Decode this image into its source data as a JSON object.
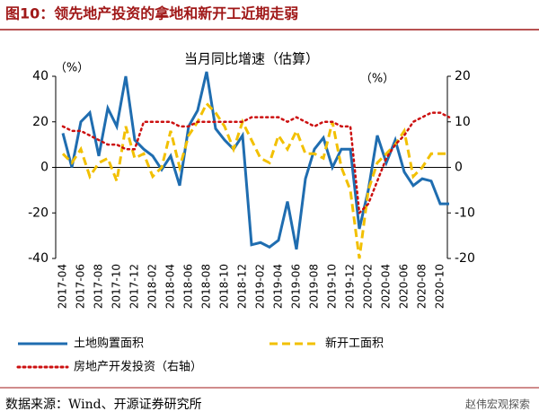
{
  "chart_data": {
    "type": "line",
    "title": "图10：领先地产投资的拿地和新开工近期走弱",
    "subtitle": "当月同比增速（估算）",
    "y_unit": "（%）",
    "y2_unit": "（%）",
    "categories": [
      "2017-04",
      null,
      "2017-06",
      null,
      "2017-08",
      null,
      "2017-10",
      null,
      "2017-12",
      null,
      "2018-02",
      null,
      "2018-04",
      null,
      "2018-06",
      null,
      "2018-08",
      null,
      "2018-10",
      null,
      "2018-12",
      null,
      "2019-02",
      null,
      "2019-04",
      null,
      "2019-06",
      null,
      "2019-08",
      null,
      "2019-10",
      null,
      "2019-12",
      null,
      "2020-02",
      null,
      "2020-04",
      null,
      "2020-06",
      null,
      "2020-08",
      null,
      "2020-10",
      null
    ],
    "series": [
      {
        "name": "土地购置面积",
        "color": "#1f6db0",
        "style": "solid",
        "axis": "y",
        "values": [
          15,
          0,
          20,
          24,
          5,
          26,
          18,
          40,
          12,
          8,
          5,
          -1,
          5,
          -8,
          18,
          25,
          42,
          17,
          12,
          8,
          14,
          -34,
          -33,
          -35,
          -32,
          -15,
          -36,
          -5,
          8,
          13,
          0,
          8,
          8,
          -27,
          -10,
          14,
          2,
          12,
          -2,
          -8,
          -5,
          -6,
          -16,
          -16
        ]
      },
      {
        "name": "新开工面积",
        "color": "#f2c000",
        "style": "dashed",
        "axis": "y2",
        "values": [
          3,
          1,
          4,
          -2,
          1,
          2,
          -3,
          9,
          2,
          3,
          -2,
          0,
          8,
          0,
          7,
          10,
          14,
          12,
          9,
          4,
          10,
          6,
          2,
          1,
          7,
          4,
          8,
          3,
          3,
          2,
          10,
          0,
          -5,
          -20,
          -5,
          1,
          3,
          5,
          8,
          -2,
          0,
          3,
          3,
          3
        ]
      },
      {
        "name": "房地产开发投资（右轴）",
        "color": "#cc1010",
        "style": "dotted",
        "axis": "y2",
        "values": [
          9,
          8,
          8,
          7,
          6,
          5,
          5,
          4,
          4,
          10,
          10,
          10,
          10,
          9,
          9,
          10,
          10,
          10,
          10,
          10,
          10,
          11,
          11,
          11,
          11,
          10,
          11,
          10,
          9,
          10,
          10,
          9,
          9,
          -10,
          -8,
          -3,
          2,
          5,
          7,
          10,
          11,
          12,
          12,
          11
        ]
      }
    ],
    "ylim": [
      -40,
      40
    ],
    "yticks": [
      -40,
      -20,
      0,
      20,
      40
    ],
    "y2lim": [
      -20,
      20
    ],
    "y2ticks": [
      -20,
      -10,
      0,
      10,
      20
    ],
    "source": "数据来源：Wind、开源证券研究所",
    "watermark": "赵伟宏观探索"
  }
}
